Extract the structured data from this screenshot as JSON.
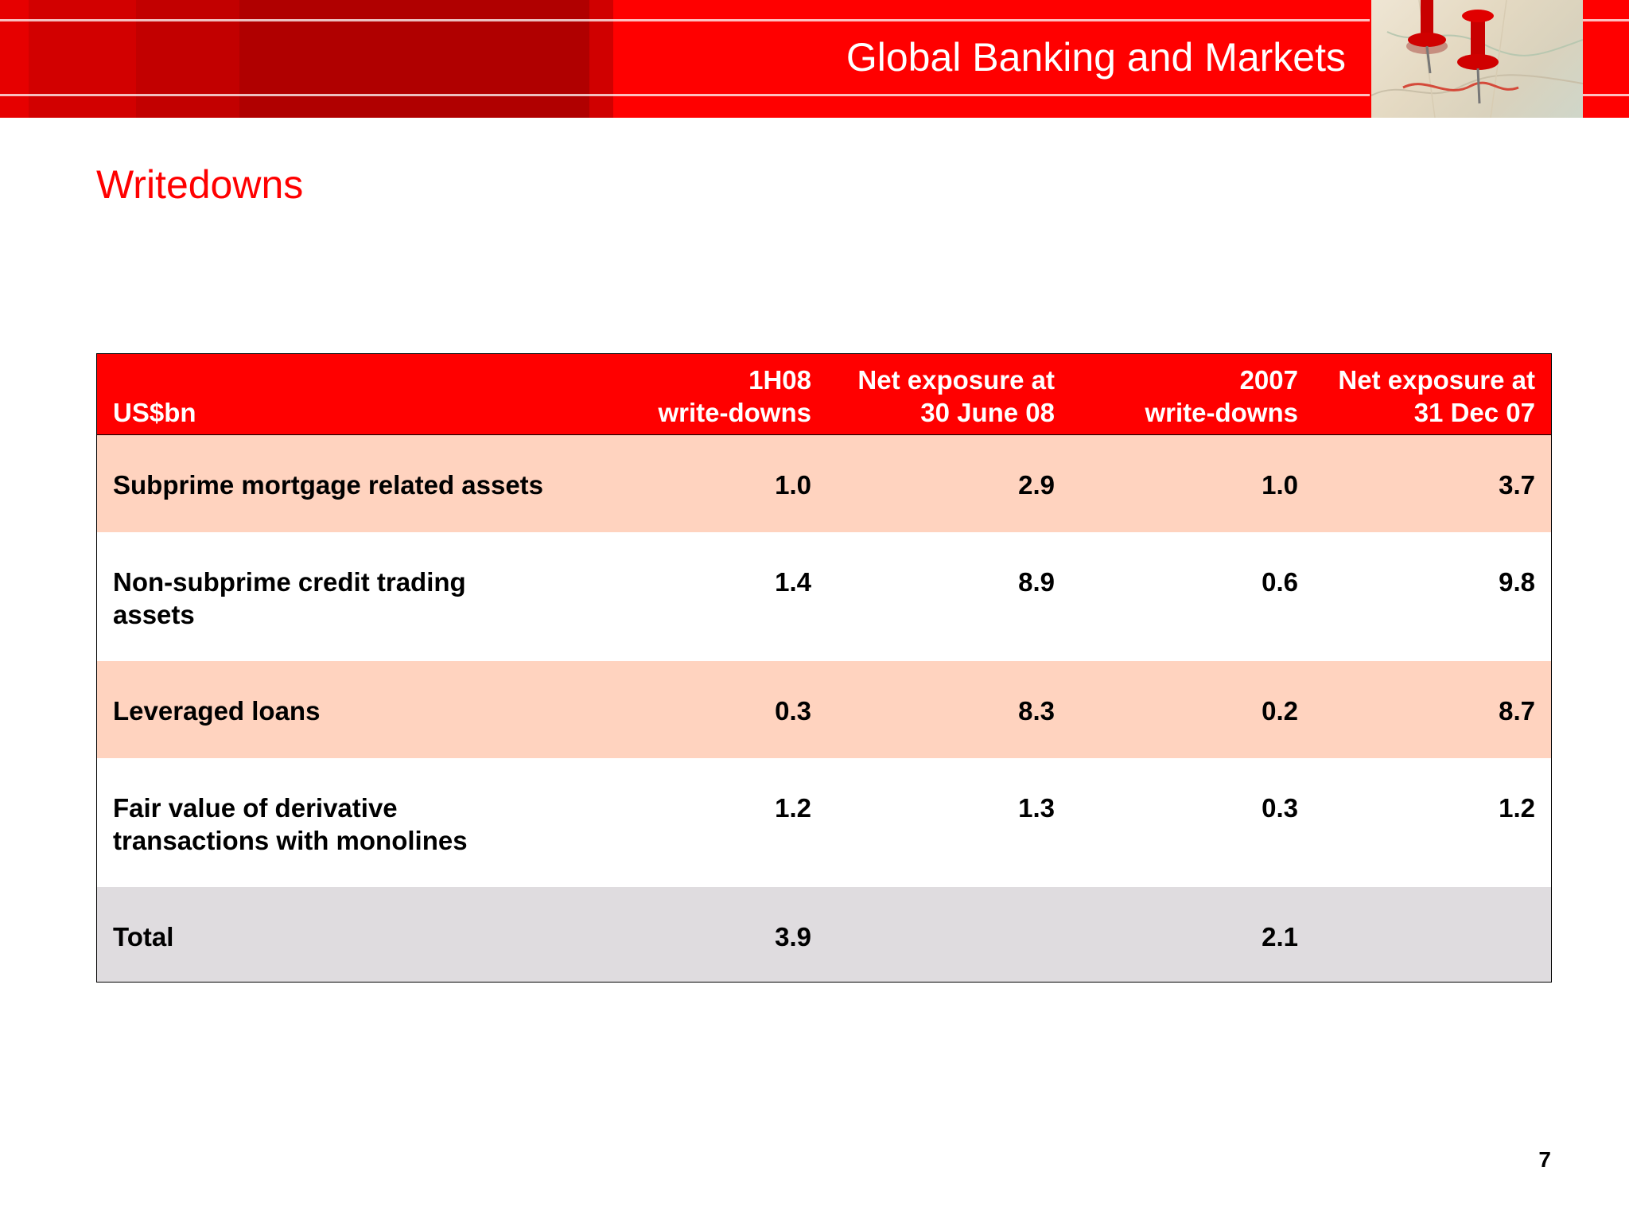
{
  "header": {
    "title": "Global Banking and Markets"
  },
  "slide": {
    "title": "Writedowns",
    "page_number": "7"
  },
  "table": {
    "columns": [
      "US$bn",
      "1H08\nwrite-downs",
      "Net exposure at\n30 June 08",
      "2007\nwrite-downs",
      "Net exposure at\n31 Dec 07"
    ],
    "rows": [
      {
        "label": "Subprime mortgage related assets",
        "values": [
          "1.0",
          "2.9",
          "1.0",
          "3.7"
        ]
      },
      {
        "label": "Non-subprime credit trading\nassets",
        "values": [
          "1.4",
          "8.9",
          "0.6",
          "9.8"
        ]
      },
      {
        "label": "Leveraged loans",
        "values": [
          "0.3",
          "8.3",
          "0.2",
          "8.7"
        ]
      },
      {
        "label": "Fair value of derivative\ntransactions with monolines",
        "values": [
          "1.2",
          "1.3",
          "0.3",
          "1.2"
        ]
      },
      {
        "label": "Total",
        "values": [
          "3.9",
          "",
          "2.1",
          ""
        ]
      }
    ]
  },
  "colors": {
    "brand_red": "#ff0000",
    "row_peach": "#ffd3bf",
    "row_grey": "#dfdcdf"
  }
}
